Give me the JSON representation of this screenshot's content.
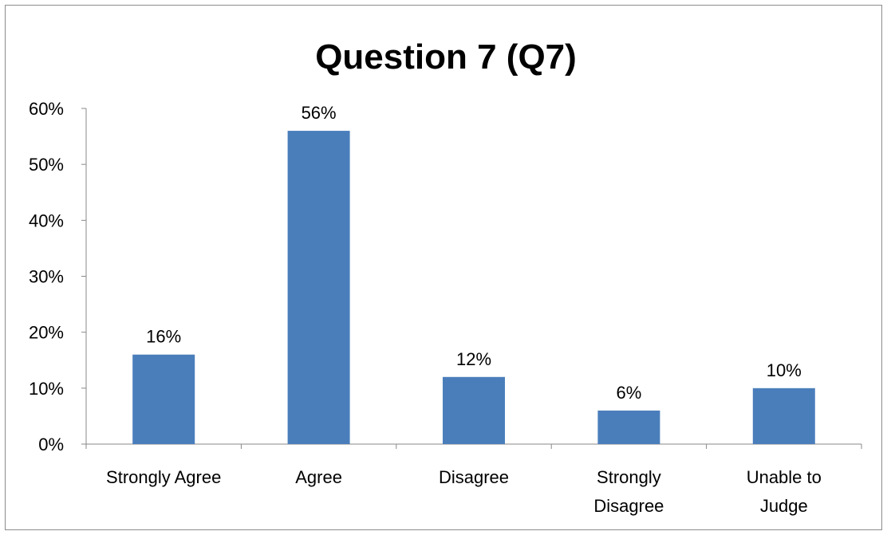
{
  "chart_data": {
    "type": "bar",
    "title": "Question 7 (Q7)",
    "categories": [
      "Strongly Agree",
      "Agree",
      "Disagree",
      "Strongly Disagree",
      "Unable to Judge"
    ],
    "category_lines": [
      [
        "Strongly Agree"
      ],
      [
        "Agree"
      ],
      [
        "Disagree"
      ],
      [
        "Strongly",
        "Disagree"
      ],
      [
        "Unable to",
        "Judge"
      ]
    ],
    "values": [
      16,
      56,
      12,
      6,
      10
    ],
    "data_labels": [
      "16%",
      "56%",
      "12%",
      "6%",
      "10%"
    ],
    "ylim": [
      0,
      60
    ],
    "yticks": [
      0,
      10,
      20,
      30,
      40,
      50,
      60
    ],
    "ytick_labels": [
      "0%",
      "10%",
      "20%",
      "30%",
      "40%",
      "50%",
      "60%"
    ],
    "xlabel": "",
    "ylabel": "",
    "grid": false,
    "legend": "none",
    "bar_color": "#4a7ebb",
    "axis_color": "#888888"
  }
}
